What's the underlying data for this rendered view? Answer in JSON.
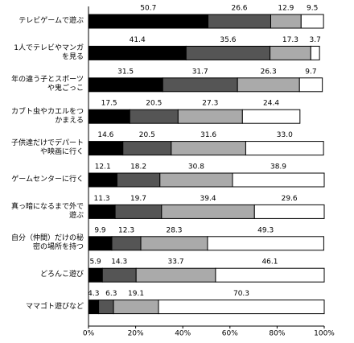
{
  "chart_data": {
    "type": "stacked-bar-horizontal",
    "categories": [
      "テレビゲームで遊ぶ",
      "1人でテレビやマンガ\nを見る",
      "年の違う子とスポーツ\nや鬼ごっこ",
      "カブト虫やカエルをつ\nかまえる",
      "子供達だけでデパート\nや映画に行く",
      "ゲームセンターに行く",
      "真っ暗になるまで外で\n遊ぶ",
      "自分（仲間）だけの秘\n密の場所を持つ",
      "どろんこ遊び",
      "ママゴト遊びなど"
    ],
    "series": [
      {
        "color": "#000000",
        "values": [
          50.7,
          41.4,
          31.5,
          17.5,
          14.6,
          12.1,
          11.3,
          9.9,
          5.9,
          4.3
        ]
      },
      {
        "color": "#555555",
        "values": [
          26.6,
          35.6,
          31.7,
          20.5,
          20.5,
          18.2,
          19.7,
          12.3,
          14.3,
          6.3
        ]
      },
      {
        "color": "#aaaaaa",
        "values": [
          12.9,
          17.3,
          26.3,
          27.3,
          31.6,
          30.8,
          39.4,
          28.3,
          33.7,
          19.1
        ]
      },
      {
        "color": "#ffffff",
        "values": [
          9.5,
          3.7,
          9.7,
          24.4,
          33.0,
          38.9,
          29.6,
          49.3,
          46.1,
          70.3
        ]
      }
    ],
    "value_labels": [
      [
        "50.7",
        "41.4",
        "31.5",
        "17.5",
        "14.6",
        "12.1",
        "11.3",
        "9.9",
        "5.9",
        "4.3"
      ],
      [
        "26.6",
        "35.6",
        "31.7",
        "20.5",
        "20.5",
        "18.2",
        "19.7",
        "12.3",
        "14.3",
        "6.3"
      ],
      [
        "12.9",
        "17.3",
        "26.3",
        "27.3",
        "31.6",
        "30.8",
        "39.4",
        "28.3",
        "33.7",
        "19.1"
      ],
      [
        "9.5",
        "3.7",
        "9.7",
        "24.4",
        "33.0",
        "38.9",
        "29.6",
        "49.3",
        "46.1",
        "70.3"
      ]
    ],
    "xlim": [
      0,
      100
    ],
    "xticks": [
      {
        "value": 0,
        "label": "0%"
      },
      {
        "value": 20,
        "label": "20%"
      },
      {
        "value": 40,
        "label": "40%"
      },
      {
        "value": 60,
        "label": "60%"
      },
      {
        "value": 80,
        "label": "80%"
      },
      {
        "value": 100,
        "label": "100%"
      }
    ]
  }
}
